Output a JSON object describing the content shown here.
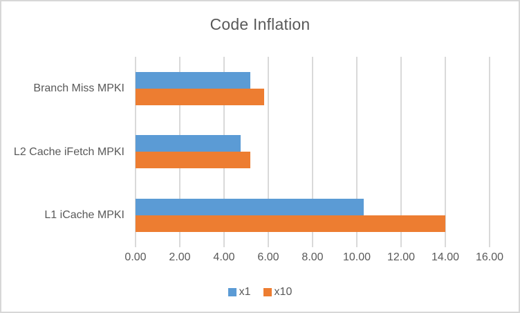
{
  "chart_data": {
    "type": "bar",
    "orientation": "horizontal",
    "title": "Code Inflation",
    "categories": [
      "Branch Miss MPKI",
      "L2 Cache iFetch MPKI",
      "L1 iCache MPKI"
    ],
    "series": [
      {
        "name": "x1",
        "color": "#5B9BD5",
        "values": [
          5.2,
          4.75,
          10.3
        ]
      },
      {
        "name": "x10",
        "color": "#ED7D31",
        "values": [
          5.8,
          5.2,
          14.0
        ]
      }
    ],
    "xlabel": "",
    "ylabel": "",
    "xlim": [
      0,
      16
    ],
    "x_ticks": [
      "0.00",
      "2.00",
      "4.00",
      "6.00",
      "8.00",
      "10.00",
      "12.00",
      "14.00",
      "16.00"
    ],
    "grid": true,
    "legend_position": "bottom",
    "colors": {
      "text": "#595959",
      "gridline": "#D9D9D9",
      "border": "#D7D7D7",
      "background": "#FFFFFF"
    }
  }
}
